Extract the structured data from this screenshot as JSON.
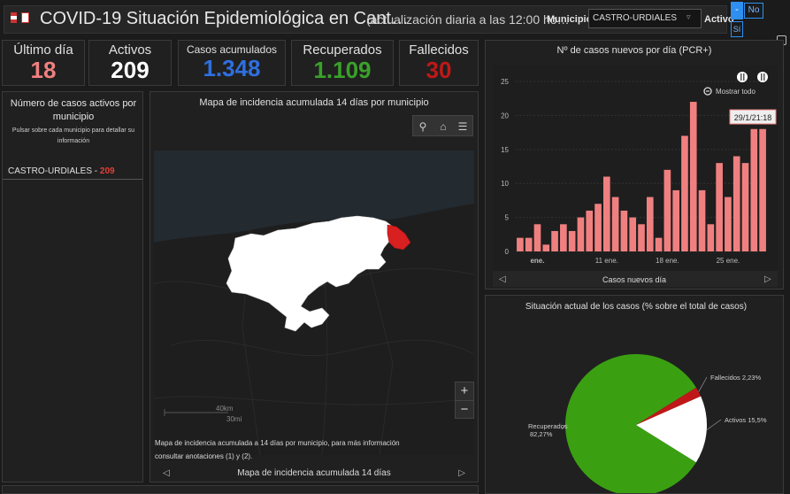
{
  "header": {
    "title": "COVID-19 Situación Epidemiológica en Cant…",
    "subtitle": "(actualización diaria a las 12:00 ho…",
    "municipio_label": "Municipio",
    "municipio_value": "CASTRO-URDIALES",
    "activo_label": "Activo",
    "activo_dash": "-",
    "activo_no": "No",
    "activo_si": "Sí"
  },
  "kpis": [
    {
      "label": "Último día",
      "value": "18",
      "color": "#f08080"
    },
    {
      "label": "Activos",
      "value": "209",
      "color": "#ffffff"
    },
    {
      "label": "Casos acumulados",
      "value": "1.348",
      "color": "#2f6fe0"
    },
    {
      "label": "Recuperados",
      "value": "1.109",
      "color": "#3aa12a"
    },
    {
      "label": "Fallecidos",
      "value": "30",
      "color": "#c01818"
    }
  ],
  "list_panel": {
    "title": "Número de casos activos por municipio",
    "hint": "Pulsar sobre cada municipio para detallar su información",
    "item_name": "CASTRO-URDIALES - ",
    "item_value": "209"
  },
  "map_panel": {
    "title": "Mapa de incidencia acumulada 14 días por municipio",
    "scale_km": "40km",
    "scale_mi": "30mi",
    "zoom_in": "+",
    "zoom_out": "−",
    "footnote": "Mapa de incidencia acumulada a 14 días por municipio, para más información consultar anotaciones (1) y (2).",
    "footer": "Mapa de incidencia acumulada 14 días",
    "colors": {
      "region": "#ffffff",
      "highlight": "#d82020",
      "background": "#1e1e1e"
    }
  },
  "chart_panel": {
    "title": "Nº de casos nuevos por día (PCR+)",
    "show_all": "Mostrar todo",
    "tooltip": "29/1/21:18",
    "footer": "Casos nuevos día"
  },
  "pie_panel": {
    "title": "Situación actual de los casos (% sobre el total de casos)"
  },
  "chart_data": [
    {
      "type": "bar",
      "title": "Nº de casos nuevos por día (PCR+)",
      "xlabel": "Casos nuevos día",
      "ylabel": "",
      "ylim": [
        0,
        25
      ],
      "yticks": [
        0,
        5,
        10,
        15,
        20,
        25
      ],
      "xticks": [
        "ene.",
        "11 ene.",
        "18 ene.",
        "25 ene."
      ],
      "grid": true,
      "bar_color": "#f08080",
      "x": [
        "1/1",
        "2/1",
        "3/1",
        "4/1",
        "5/1",
        "6/1",
        "7/1",
        "8/1",
        "9/1",
        "10/1",
        "11/1",
        "12/1",
        "13/1",
        "14/1",
        "15/1",
        "16/1",
        "17/1",
        "18/1",
        "19/1",
        "20/1",
        "21/1",
        "22/1",
        "23/1",
        "24/1",
        "25/1",
        "26/1",
        "27/1",
        "28/1",
        "29/1"
      ],
      "values": [
        2,
        2,
        4,
        1,
        3,
        4,
        3,
        5,
        6,
        7,
        11,
        8,
        6,
        5,
        4,
        8,
        2,
        12,
        9,
        17,
        22,
        9,
        4,
        13,
        8,
        14,
        13,
        18,
        18
      ]
    },
    {
      "type": "pie",
      "title": "Situación actual de los casos (% sobre el total de casos)",
      "slices": [
        {
          "label": "Recuperados",
          "value": 82.27,
          "display": "Recuperados 82,27%",
          "color": "#3aa012"
        },
        {
          "label": "Activos",
          "value": 15.5,
          "display": "Activos 15,5%",
          "color": "#ffffff"
        },
        {
          "label": "Fallecidos",
          "value": 2.23,
          "display": "Fallecidos 2,23%",
          "color": "#c01818"
        }
      ]
    }
  ]
}
